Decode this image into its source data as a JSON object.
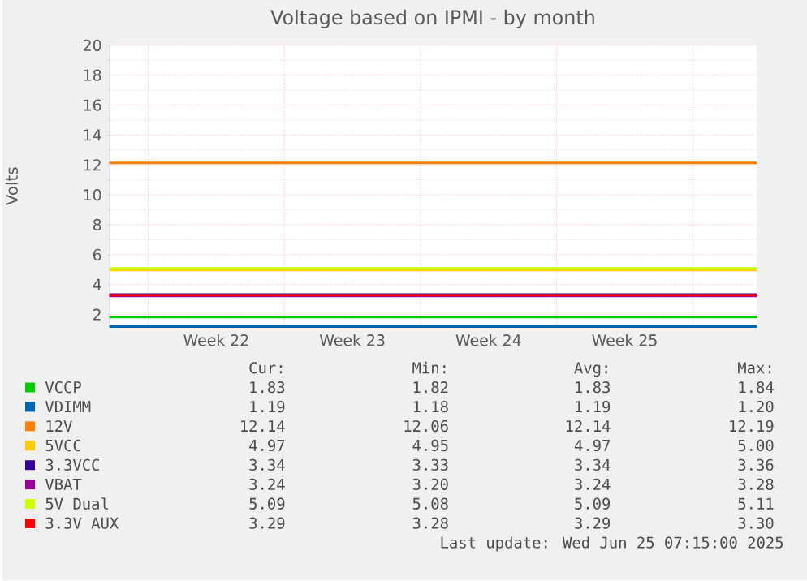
{
  "chart_data": {
    "type": "line",
    "title": "Voltage based on IPMI - by month",
    "ylabel": "Volts",
    "x": [
      "2025-05-24",
      "2025-06-26T07:00"
    ],
    "xlim": [
      "2025-05-24",
      "2025-06-26T07:00"
    ],
    "xticks": [
      {
        "value": "2025-05-26",
        "label": null
      },
      {
        "value": "2025-05-29T12:00",
        "label": "Week 22"
      },
      {
        "value": "2025-06-02",
        "label": null
      },
      {
        "value": "2025-06-05T12:00",
        "label": "Week 23"
      },
      {
        "value": "2025-06-09",
        "label": null
      },
      {
        "value": "2025-06-12T12:00",
        "label": "Week 24"
      },
      {
        "value": "2025-06-16",
        "label": null
      },
      {
        "value": "2025-06-19T12:00",
        "label": "Week 25"
      },
      {
        "value": "2025-06-23",
        "label": null
      }
    ],
    "ylim": [
      1.18,
      20
    ],
    "yticks": [
      2,
      4,
      6,
      8,
      10,
      12,
      14,
      16,
      18,
      20
    ],
    "grid": true,
    "legend": "bottom",
    "series": [
      {
        "name": "VCCP",
        "color": "#00cc00",
        "values": [
          1.83,
          1.83
        ]
      },
      {
        "name": "VDIMM",
        "color": "#0066b3",
        "values": [
          1.19,
          1.19
        ]
      },
      {
        "name": "12V",
        "color": "#ff8000",
        "values": [
          12.14,
          12.14
        ]
      },
      {
        "name": "5VCC",
        "color": "#ffcc00",
        "values": [
          4.97,
          4.97
        ]
      },
      {
        "name": "3.3VCC",
        "color": "#330099",
        "values": [
          3.34,
          3.34
        ]
      },
      {
        "name": "VBAT",
        "color": "#990099",
        "values": [
          3.24,
          3.24
        ]
      },
      {
        "name": "5V Dual",
        "color": "#ccff00",
        "values": [
          5.09,
          5.09
        ]
      },
      {
        "name": "3.3V AUX",
        "color": "#ff0000",
        "values": [
          3.29,
          3.29
        ]
      }
    ],
    "annotations": [
      "Cur:",
      "Min:",
      "Avg:",
      "Max:",
      "1.83",
      "1.82",
      "1.83",
      "1.84",
      "1.19",
      "1.18",
      "1.19",
      "1.20",
      "12.14",
      "12.06",
      "12.14",
      "12.19",
      "4.97",
      "4.95",
      "4.97",
      "5.00",
      "3.34",
      "3.33",
      "3.34",
      "3.36",
      "3.24",
      "3.20",
      "3.24",
      "3.28",
      "5.09",
      "5.08",
      "5.09",
      "5.11",
      "3.29",
      "3.28",
      "3.29",
      "3.30",
      "Last update: Wed Jun 25 07:15:00 2025"
    ]
  }
}
